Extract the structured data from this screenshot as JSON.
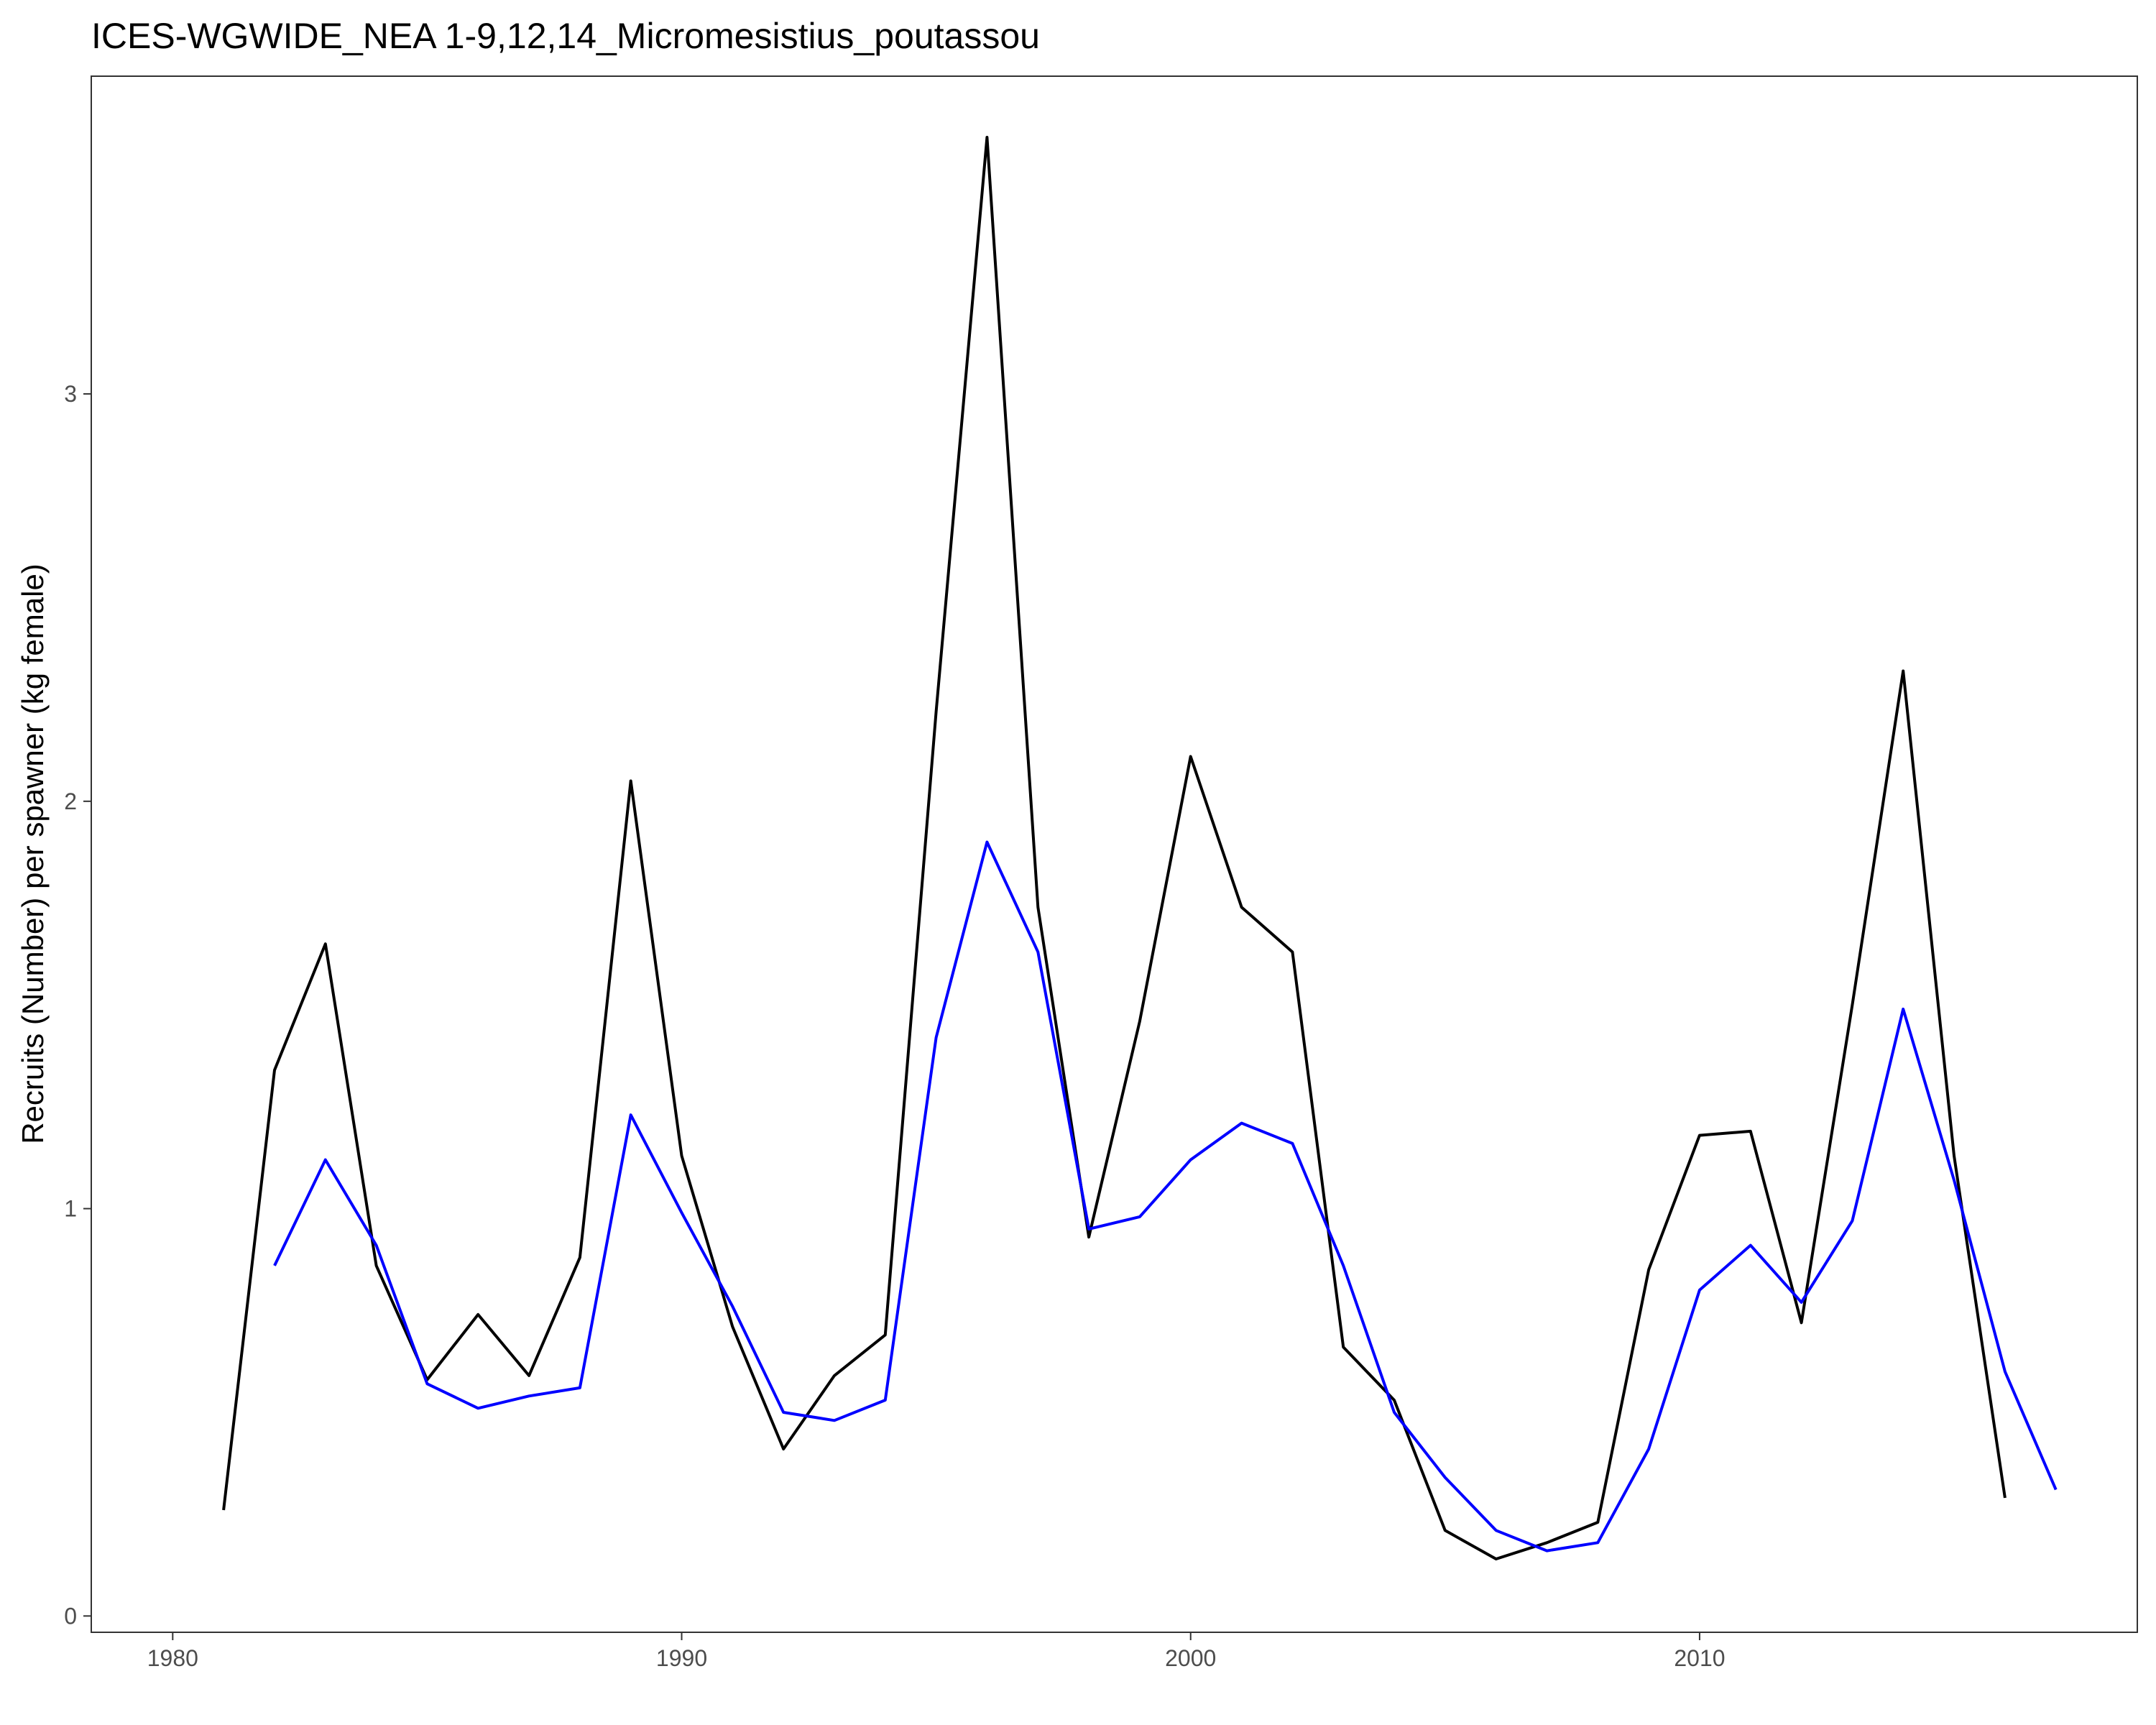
{
  "chart_data": {
    "type": "line",
    "title": "ICES-WGWIDE_NEA 1-9,12,14_Micromesistius_poutassou",
    "xlabel": "",
    "ylabel": "Recruits (Number) per spawner (kg female)",
    "xlim": [
      1978.4,
      2018.6
    ],
    "ylim": [
      -0.04,
      3.78
    ],
    "x_ticks": [
      1980,
      1990,
      2000,
      2010
    ],
    "y_ticks": [
      0,
      1,
      2,
      3
    ],
    "grid": false,
    "legend": "none",
    "series": [
      {
        "color": "#000000",
        "x": [
          1981,
          1982,
          1983,
          1984,
          1985,
          1986,
          1987,
          1988,
          1989,
          1990,
          1991,
          1992,
          1993,
          1994,
          1995,
          1996,
          1997,
          1998,
          1999,
          2000,
          2001,
          2002,
          2003,
          2004,
          2005,
          2006,
          2007,
          2008,
          2009,
          2010,
          2011,
          2012,
          2013,
          2014,
          2015,
          2016
        ],
        "y": [
          0.26,
          1.34,
          1.65,
          0.86,
          0.58,
          0.74,
          0.59,
          0.88,
          2.05,
          1.13,
          0.71,
          0.41,
          0.59,
          0.69,
          2.22,
          3.63,
          1.74,
          0.93,
          1.46,
          2.11,
          1.74,
          1.63,
          0.66,
          0.53,
          0.21,
          0.14,
          0.18,
          0.23,
          0.85,
          1.18,
          1.19,
          0.72,
          1.5,
          2.32,
          1.13,
          0.29
        ]
      },
      {
        "color": "#0000ff",
        "x": [
          1982,
          1983,
          1984,
          1985,
          1986,
          1987,
          1988,
          1989,
          1990,
          1991,
          1992,
          1993,
          1994,
          1995,
          1996,
          1997,
          1998,
          1999,
          2000,
          2001,
          2002,
          2003,
          2004,
          2005,
          2006,
          2007,
          2008,
          2009,
          2010,
          2011,
          2012,
          2013,
          2014,
          2015,
          2016,
          2017
        ],
        "y": [
          0.86,
          1.12,
          0.91,
          0.57,
          0.51,
          0.54,
          0.56,
          1.23,
          0.99,
          0.76,
          0.5,
          0.48,
          0.53,
          1.42,
          1.9,
          1.63,
          0.95,
          0.98,
          1.12,
          1.21,
          1.16,
          0.86,
          0.5,
          0.34,
          0.21,
          0.16,
          0.18,
          0.41,
          0.8,
          0.91,
          0.77,
          0.97,
          1.49,
          1.07,
          0.6,
          0.31
        ]
      }
    ]
  }
}
